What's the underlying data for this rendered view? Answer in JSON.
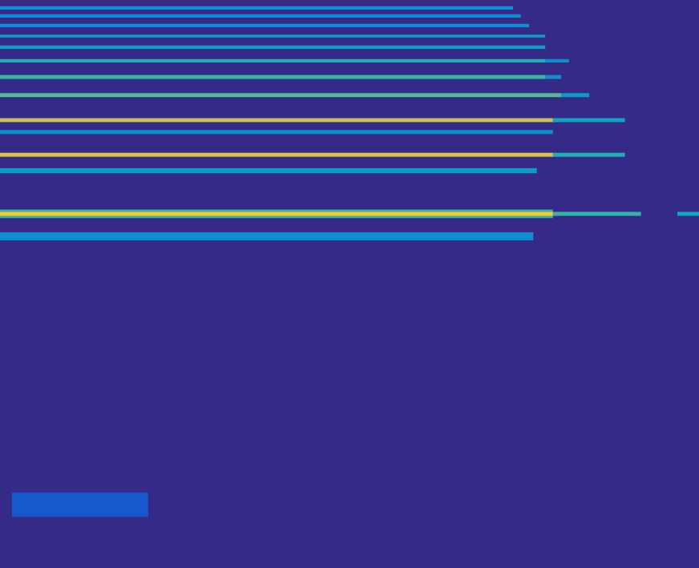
{
  "chart_data": {
    "type": "heatmap",
    "xlim": [
      0,
      100
    ],
    "ylim": [
      0,
      100
    ],
    "tick_labels": false,
    "zlim": [
      0,
      1
    ],
    "colors": [
      "#352a87",
      "#0f5cdd",
      "#1481d6",
      "#06a4ca",
      "#2eb7a4",
      "#87bf77",
      "#d1bb59",
      "#fec832",
      "#f9fb0e"
    ],
    "cells": [
      {
        "x1": 1.7,
        "x2": 21.2,
        "y1": 9.0,
        "y2": 13.3,
        "value": 0.12
      },
      {
        "x1": 0,
        "x2": 76.3,
        "y1": 57.7,
        "y2": 59.1,
        "value": 0.3
      },
      {
        "x1": 0,
        "x2": 79.1,
        "y1": 61.6,
        "y2": 63.1,
        "value": 0.5
      },
      {
        "x1": 79.1,
        "x2": 91.7,
        "y1": 62.0,
        "y2": 62.7,
        "value": 0.5
      },
      {
        "x1": 96.9,
        "x2": 100,
        "y1": 62.0,
        "y2": 62.7,
        "value": 0.4
      },
      {
        "x1": 0,
        "x2": 79.1,
        "y1": 62.0,
        "y2": 62.7,
        "value": 0.85
      },
      {
        "x1": 0,
        "x2": 76.8,
        "y1": 69.5,
        "y2": 70.4,
        "value": 0.35
      },
      {
        "x1": 79.1,
        "x2": 89.4,
        "y1": 72.4,
        "y2": 73.1,
        "value": 0.45
      },
      {
        "x1": 0,
        "x2": 79.1,
        "y1": 72.4,
        "y2": 73.1,
        "value": 0.8
      },
      {
        "x1": 0,
        "x2": 79.1,
        "y1": 76.4,
        "y2": 77.1,
        "value": 0.3
      },
      {
        "x1": 79.1,
        "x2": 89.4,
        "y1": 78.5,
        "y2": 79.2,
        "value": 0.4
      },
      {
        "x1": 0,
        "x2": 79.1,
        "y1": 78.5,
        "y2": 79.2,
        "value": 0.75
      },
      {
        "x1": 80.3,
        "x2": 84.3,
        "y1": 82.9,
        "y2": 83.6,
        "value": 0.35
      },
      {
        "x1": 0,
        "x2": 80.3,
        "y1": 82.9,
        "y2": 83.6,
        "value": 0.55
      },
      {
        "x1": 78.0,
        "x2": 80.3,
        "y1": 86.1,
        "y2": 86.8,
        "value": 0.3
      },
      {
        "x1": 0,
        "x2": 78.0,
        "y1": 86.1,
        "y2": 86.8,
        "value": 0.5
      },
      {
        "x1": 78.0,
        "x2": 81.4,
        "y1": 89.0,
        "y2": 89.6,
        "value": 0.3
      },
      {
        "x1": 0,
        "x2": 78.0,
        "y1": 89.0,
        "y2": 89.6,
        "value": 0.45
      },
      {
        "x1": 0,
        "x2": 78.0,
        "y1": 91.4,
        "y2": 92.0,
        "value": 0.35
      },
      {
        "x1": 0,
        "x2": 78.0,
        "y1": 93.4,
        "y2": 93.9,
        "value": 0.35
      },
      {
        "x1": 0,
        "x2": 75.7,
        "y1": 95.2,
        "y2": 95.8,
        "value": 0.3
      },
      {
        "x1": 0,
        "x2": 74.5,
        "y1": 96.9,
        "y2": 97.5,
        "value": 0.3
      },
      {
        "x1": 0,
        "x2": 73.4,
        "y1": 98.3,
        "y2": 98.9,
        "value": 0.3
      }
    ]
  }
}
